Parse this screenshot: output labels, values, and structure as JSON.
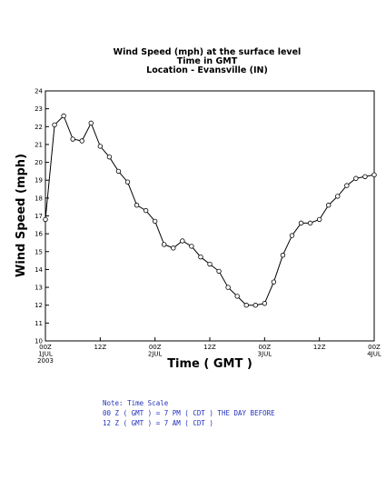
{
  "chart_data": {
    "type": "line",
    "title": [
      "Wind Speed (mph) at the surface level",
      "Time in GMT",
      "Location - Evansville (IN)"
    ],
    "xlabel": "Time ( GMT )",
    "ylabel": "Wind Speed (mph)",
    "ylim": [
      10,
      24
    ],
    "yticks": [
      10,
      11,
      12,
      13,
      14,
      15,
      16,
      17,
      18,
      19,
      20,
      21,
      22,
      23,
      24
    ],
    "xlim": [
      0,
      72
    ],
    "xticks": [
      {
        "x": 0,
        "lines": [
          "00Z",
          "1JUL",
          "2003"
        ]
      },
      {
        "x": 12,
        "lines": [
          "12Z"
        ]
      },
      {
        "x": 24,
        "lines": [
          "00Z",
          "2JUL"
        ]
      },
      {
        "x": 36,
        "lines": [
          "12Z"
        ]
      },
      {
        "x": 48,
        "lines": [
          "00Z",
          "3JUL"
        ]
      },
      {
        "x": 60,
        "lines": [
          "12Z"
        ]
      },
      {
        "x": 72,
        "lines": [
          "00Z",
          "4JUL"
        ]
      }
    ],
    "grid": false,
    "x": [
      0,
      2,
      4,
      6,
      8,
      10,
      12,
      14,
      16,
      18,
      20,
      22,
      24,
      26,
      28,
      30,
      32,
      34,
      36,
      38,
      40,
      42,
      44,
      46,
      48,
      50,
      52,
      54,
      56,
      58,
      60,
      62,
      64,
      66,
      68,
      70,
      72
    ],
    "values": [
      16.8,
      22.1,
      22.6,
      21.3,
      21.2,
      22.2,
      20.9,
      20.3,
      19.5,
      18.9,
      17.6,
      17.3,
      16.7,
      15.4,
      15.2,
      15.6,
      15.3,
      14.7,
      14.3,
      13.9,
      13.0,
      12.5,
      12.0,
      12.0,
      12.1,
      13.3,
      14.8,
      15.9,
      16.6,
      16.6,
      16.8,
      17.6,
      18.1,
      18.7,
      19.1,
      19.2,
      19.3
    ]
  },
  "note": {
    "lines": [
      "Note: Time Scale",
      "00 Z ( GMT ) = 7 PM ( CDT ) THE DAY BEFORE",
      "12 Z ( GMT ) = 7 AM ( CDT )"
    ]
  }
}
